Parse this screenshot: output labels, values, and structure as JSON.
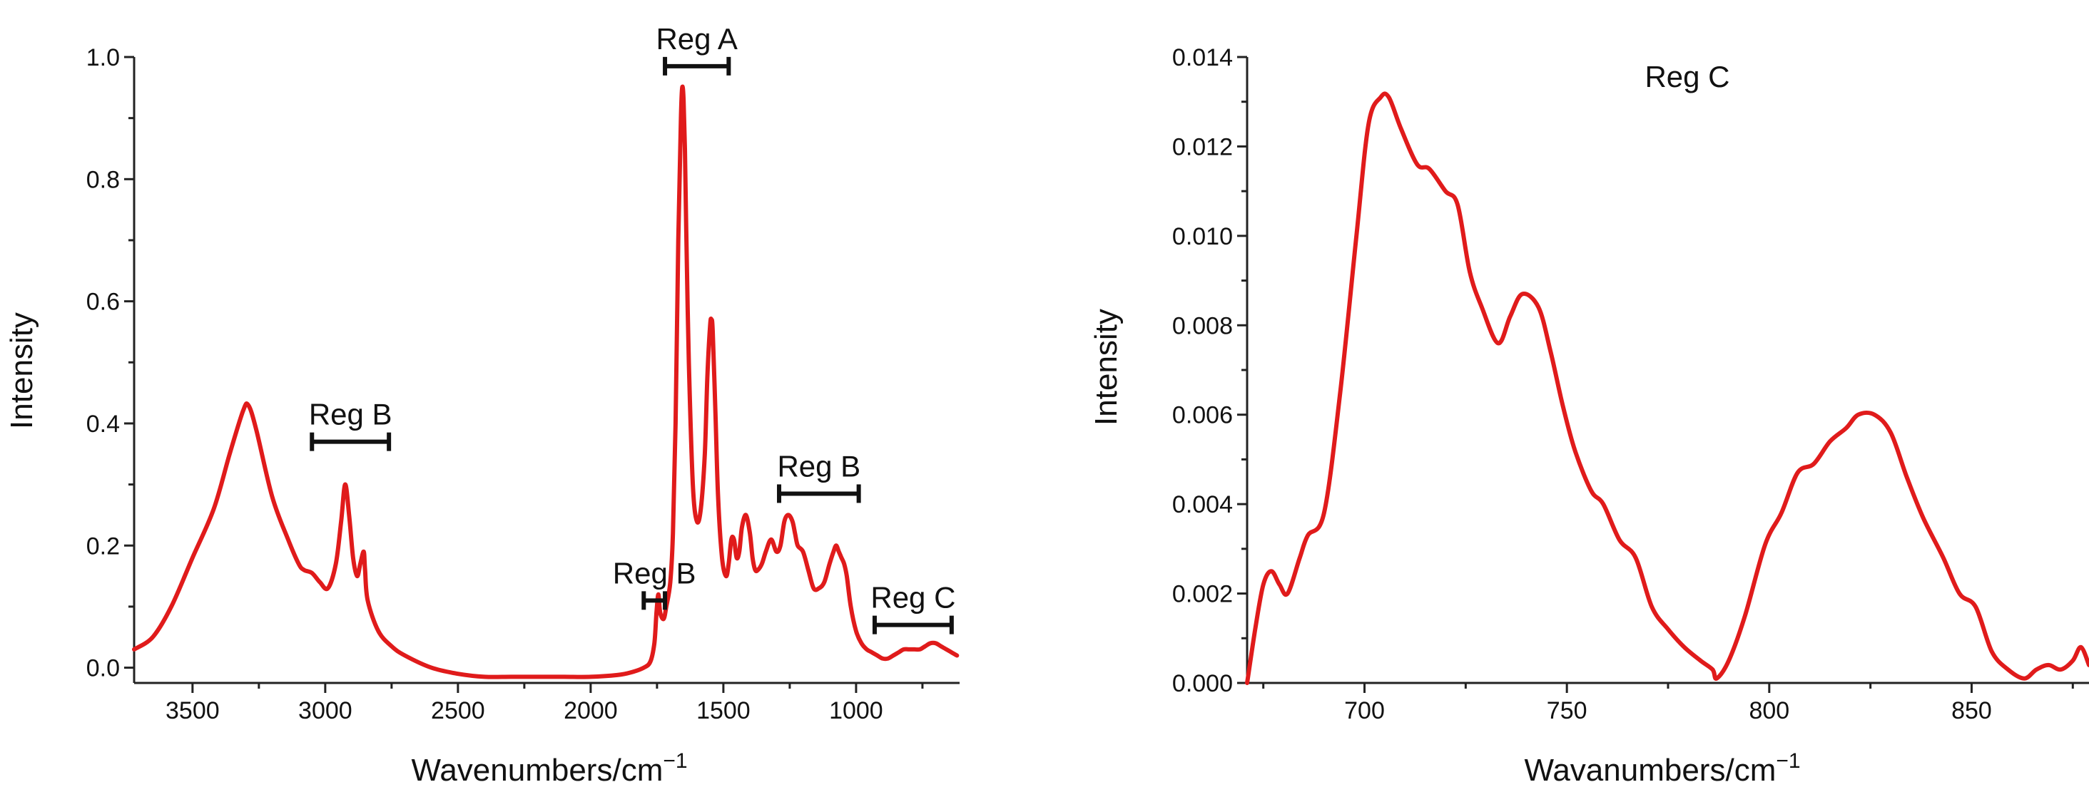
{
  "chart_data": [
    {
      "type": "line",
      "title": "",
      "xlabel": "Wavenumbers/cm",
      "xlabel_sup": "−1",
      "ylabel": "Intensity",
      "xlim": [
        3720,
        610
      ],
      "ylim": [
        -0.025,
        1.0
      ],
      "xticks": [
        3500,
        3000,
        2500,
        2000,
        1500,
        1000
      ],
      "xtick_labels": [
        "3500",
        "3000",
        "2500",
        "2000",
        "1500",
        "1000"
      ],
      "yticks": [
        0.0,
        0.2,
        0.4,
        0.6,
        0.8,
        1.0
      ],
      "ytick_labels": [
        "0.0",
        "0.2",
        "0.4",
        "0.6",
        "0.8",
        "1.0"
      ],
      "series": [
        {
          "name": "spectrum",
          "color": "#e01b1b",
          "x": [
            3720,
            3650,
            3580,
            3500,
            3420,
            3360,
            3310,
            3290,
            3260,
            3200,
            3140,
            3100,
            3080,
            3050,
            3020,
            2990,
            2960,
            2940,
            2925,
            2910,
            2895,
            2880,
            2868,
            2855,
            2850,
            2840,
            2800,
            2750,
            2700,
            2600,
            2500,
            2400,
            2300,
            2200,
            2100,
            2000,
            1900,
            1850,
            1800,
            1775,
            1760,
            1752,
            1745,
            1738,
            1725,
            1715,
            1700,
            1690,
            1680,
            1670,
            1660,
            1655,
            1650,
            1645,
            1640,
            1630,
            1615,
            1600,
            1585,
            1570,
            1560,
            1550,
            1545,
            1540,
            1530,
            1520,
            1505,
            1490,
            1480,
            1470,
            1460,
            1450,
            1440,
            1430,
            1415,
            1400,
            1390,
            1380,
            1370,
            1355,
            1340,
            1320,
            1300,
            1285,
            1270,
            1255,
            1240,
            1230,
            1220,
            1200,
            1180,
            1160,
            1140,
            1120,
            1100,
            1085,
            1075,
            1065,
            1055,
            1045,
            1035,
            1020,
            1000,
            980,
            960,
            940,
            920,
            900,
            880,
            860,
            840,
            820,
            800,
            780,
            760,
            740,
            720,
            700,
            680,
            660,
            640,
            620
          ],
          "y": [
            0.03,
            0.05,
            0.1,
            0.18,
            0.26,
            0.35,
            0.42,
            0.43,
            0.39,
            0.28,
            0.21,
            0.17,
            0.16,
            0.155,
            0.14,
            0.13,
            0.17,
            0.24,
            0.3,
            0.25,
            0.18,
            0.15,
            0.17,
            0.19,
            0.16,
            0.11,
            0.06,
            0.035,
            0.02,
            0.0,
            -0.01,
            -0.015,
            -0.015,
            -0.015,
            -0.015,
            -0.015,
            -0.012,
            -0.008,
            0.0,
            0.01,
            0.04,
            0.09,
            0.12,
            0.09,
            0.08,
            0.1,
            0.14,
            0.22,
            0.4,
            0.7,
            0.9,
            0.95,
            0.93,
            0.85,
            0.72,
            0.5,
            0.3,
            0.24,
            0.26,
            0.35,
            0.48,
            0.56,
            0.57,
            0.55,
            0.42,
            0.28,
            0.18,
            0.15,
            0.17,
            0.21,
            0.21,
            0.18,
            0.19,
            0.23,
            0.25,
            0.22,
            0.18,
            0.16,
            0.16,
            0.17,
            0.19,
            0.21,
            0.19,
            0.2,
            0.24,
            0.25,
            0.24,
            0.22,
            0.2,
            0.19,
            0.16,
            0.13,
            0.13,
            0.14,
            0.17,
            0.19,
            0.2,
            0.19,
            0.18,
            0.17,
            0.15,
            0.1,
            0.06,
            0.04,
            0.03,
            0.025,
            0.02,
            0.015,
            0.015,
            0.02,
            0.025,
            0.03,
            0.03,
            0.03,
            0.03,
            0.035,
            0.04,
            0.04,
            0.035,
            0.03,
            0.025,
            0.02
          ]
        }
      ],
      "annotations": [
        {
          "label": "Reg A",
          "x1": 1720,
          "x2": 1480,
          "y": 0.985
        },
        {
          "label": "Reg B",
          "x1": 3050,
          "x2": 2760,
          "y": 0.37
        },
        {
          "label": "Reg B",
          "x1": 1800,
          "x2": 1720,
          "y": 0.11
        },
        {
          "label": "Reg B",
          "x1": 1290,
          "x2": 990,
          "y": 0.285
        },
        {
          "label": "Reg C",
          "x1": 930,
          "x2": 640,
          "y": 0.07
        }
      ]
    },
    {
      "type": "line",
      "title": "Reg C",
      "xlabel": "Wavanumbers/cm",
      "xlabel_sup": "−1",
      "ylabel": "Intensity",
      "xlim": [
        671,
        879
      ],
      "ylim": [
        0.0,
        0.014
      ],
      "xticks": [
        700,
        750,
        800,
        850
      ],
      "xtick_labels": [
        "700",
        "750",
        "800",
        "850"
      ],
      "yticks": [
        0.0,
        0.002,
        0.004,
        0.006,
        0.008,
        0.01,
        0.012,
        0.014
      ],
      "ytick_labels": [
        "0.000",
        "0.002",
        "0.004",
        "0.006",
        "0.008",
        "0.010",
        "0.012",
        "0.014"
      ],
      "series": [
        {
          "name": "Reg C spectrum",
          "color": "#e01b1b",
          "x": [
            671,
            673,
            675,
            677,
            679,
            681,
            684,
            686,
            690,
            694,
            698,
            701,
            704,
            706,
            709,
            713,
            716,
            720,
            723,
            726,
            729,
            733,
            736,
            739,
            743,
            746,
            749,
            752,
            756,
            759,
            763,
            767,
            771,
            775,
            779,
            783,
            786,
            787,
            790,
            794,
            799,
            803,
            807,
            811,
            815,
            819,
            822,
            826,
            830,
            834,
            838,
            843,
            847,
            851,
            855,
            859,
            863,
            866,
            869,
            872,
            875,
            877,
            879
          ],
          "y": [
            0.0,
            0.0012,
            0.0022,
            0.0025,
            0.0022,
            0.002,
            0.0028,
            0.0033,
            0.0038,
            0.0065,
            0.01,
            0.0125,
            0.0131,
            0.0131,
            0.0124,
            0.0116,
            0.0115,
            0.011,
            0.0107,
            0.0092,
            0.0084,
            0.0076,
            0.0082,
            0.0087,
            0.0084,
            0.0074,
            0.0062,
            0.0052,
            0.0043,
            0.004,
            0.0032,
            0.0028,
            0.0017,
            0.0012,
            0.0008,
            0.0005,
            0.0003,
            0.0001,
            0.0005,
            0.0015,
            0.0031,
            0.0038,
            0.0047,
            0.0049,
            0.0054,
            0.0057,
            0.006,
            0.006,
            0.0056,
            0.0046,
            0.0037,
            0.0028,
            0.002,
            0.0017,
            0.0007,
            0.0003,
            0.0001,
            0.0003,
            0.0004,
            0.0003,
            0.0005,
            0.0008,
            0.0004
          ]
        }
      ],
      "annotations": []
    }
  ]
}
